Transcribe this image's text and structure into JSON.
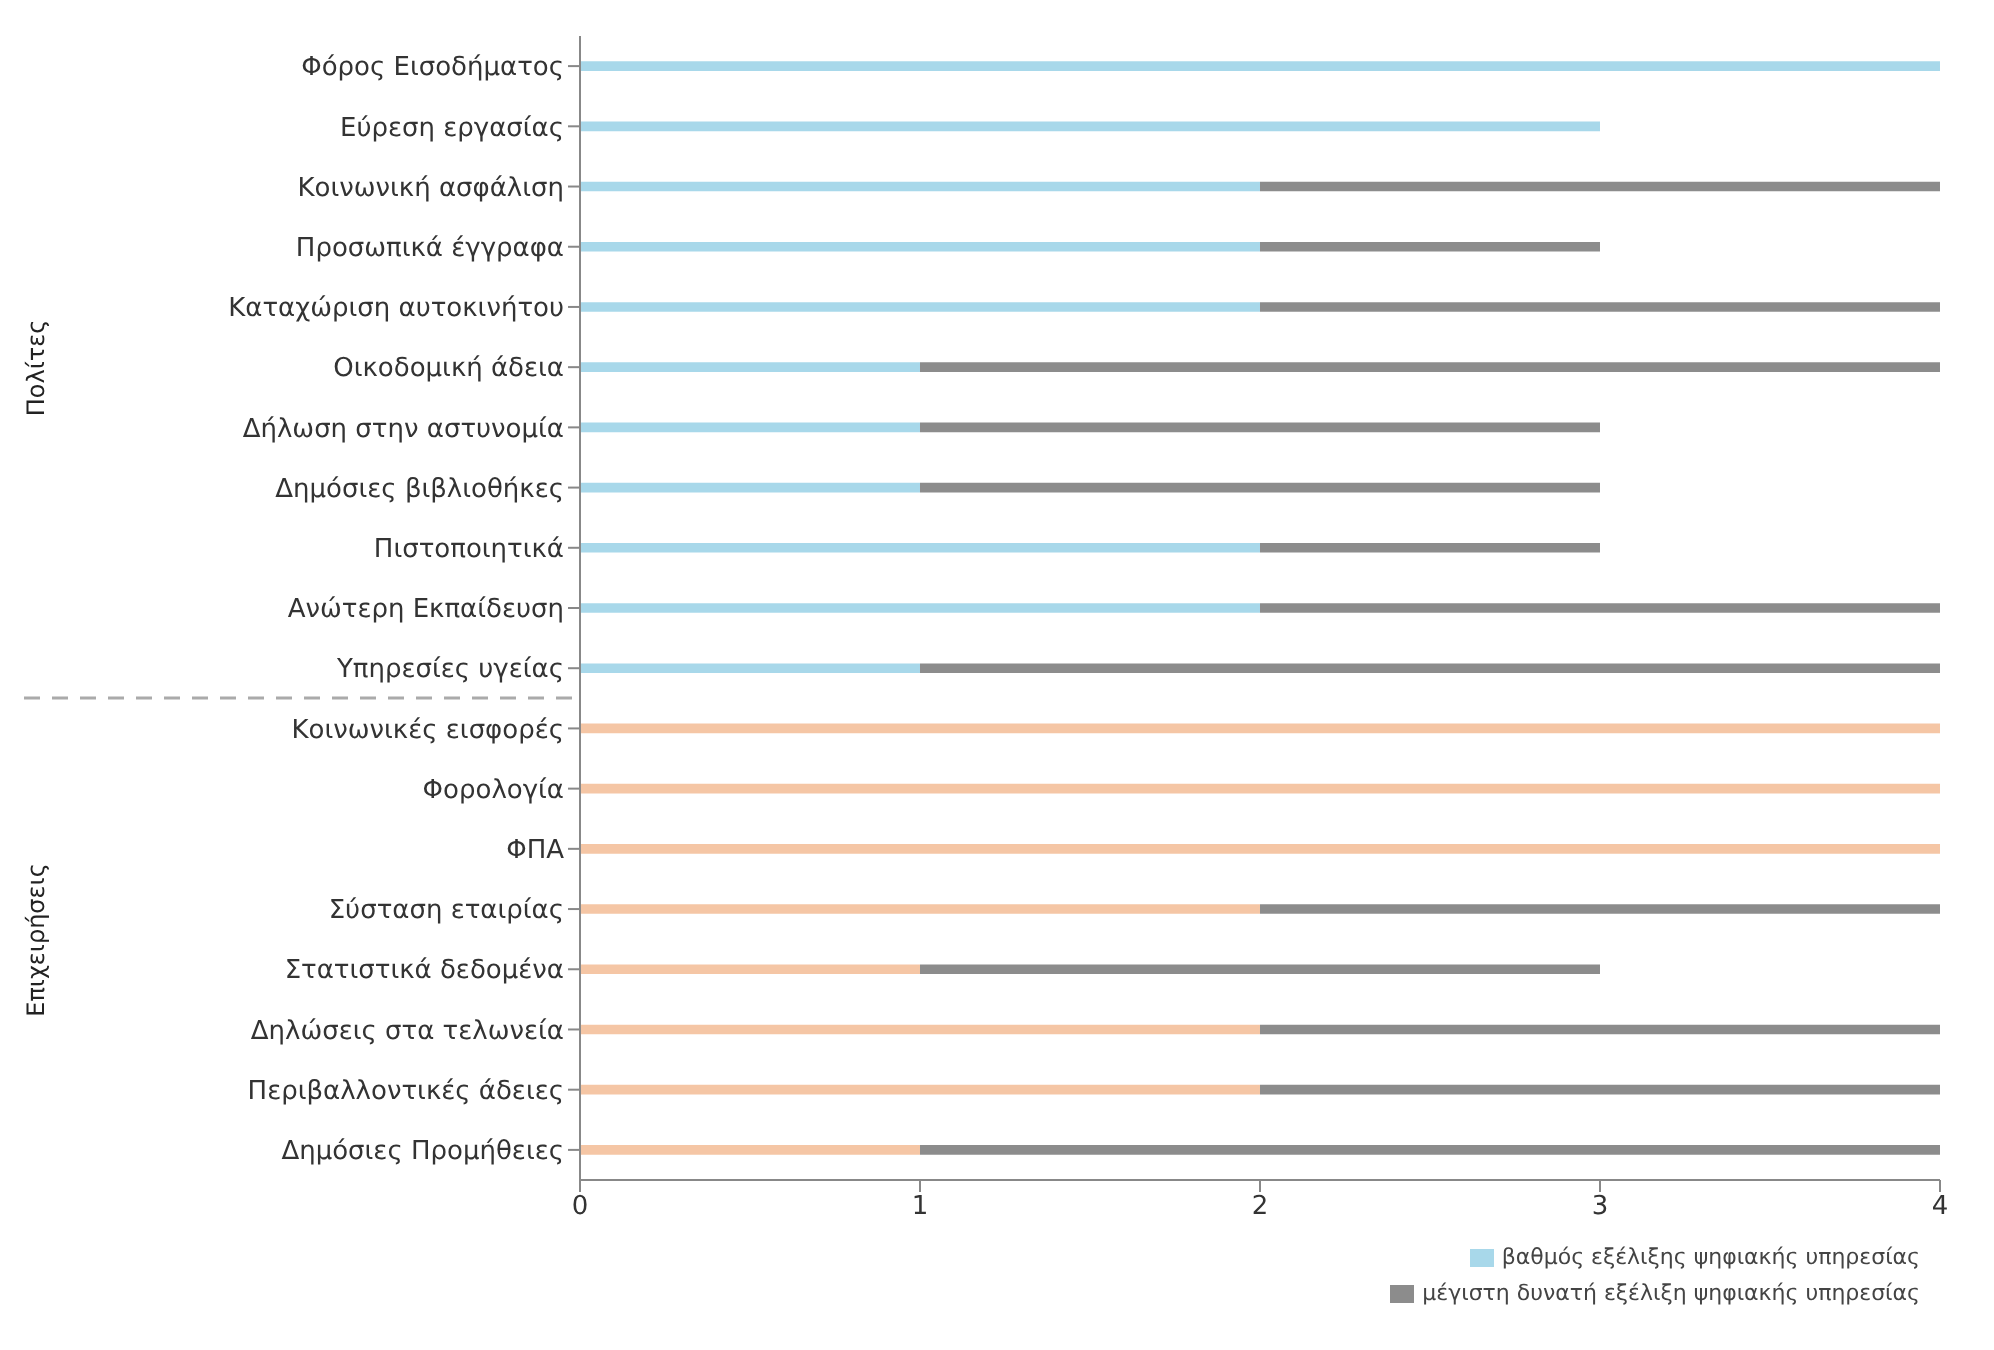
{
  "chart_data": {
    "type": "bar",
    "orientation": "horizontal",
    "stacked": true,
    "categories": [
      "Φόρος Εισοδήματος",
      "Εύρεση εργασίας",
      "Κοινωνική ασφάλιση",
      "Προσωπικά έγγραφα",
      "Καταχώριση αυτοκινήτου",
      "Οικοδομική άδεια",
      "Δήλωση στην αστυνομία",
      "Δημόσιες βιβλιοθήκες",
      "Πιστοποιητικά",
      "Ανώτερη Εκπαίδευση",
      "Υπηρεσίες υγείας",
      "Κοινωνικές εισφορές",
      "Φορολογία",
      "ΦΠΑ",
      "Σύσταση εταιρίας",
      "Στατιστικά δεδομένα",
      "Δηλώσεις στα τελωνεία",
      "Περιβαλλοντικές άδειες",
      "Δημόσιες Προμήθειες"
    ],
    "series": [
      {
        "name": "βαθμός εξέλιξης ψηφιακής υπηρεσίας",
        "color": "#a8d8ea",
        "colors": [
          "#a8d8ea",
          "#a8d8ea",
          "#a8d8ea",
          "#a8d8ea",
          "#a8d8ea",
          "#a8d8ea",
          "#a8d8ea",
          "#a8d8ea",
          "#a8d8ea",
          "#a8d8ea",
          "#a8d8ea",
          "#f5c6a5",
          "#f5c6a5",
          "#f5c6a5",
          "#f5c6a5",
          "#f5c6a5",
          "#f5c6a5",
          "#f5c6a5",
          "#f5c6a5"
        ],
        "values": [
          4,
          3,
          2,
          2,
          2,
          1,
          1,
          1,
          2,
          2,
          1,
          4,
          4,
          4,
          2,
          1,
          2,
          2,
          1
        ]
      },
      {
        "name": "μέγιστη δυνατή εξέλιξη ψηφιακής υπηρεσίας",
        "color": "#8c8c8c",
        "values": [
          0,
          0,
          2,
          1,
          2,
          3,
          2,
          2,
          1,
          2,
          3,
          0,
          0,
          0,
          2,
          2,
          2,
          2,
          3
        ]
      }
    ],
    "xlim": [
      0,
      4
    ],
    "xticks": [
      0,
      1,
      2,
      3,
      4
    ],
    "legend": "bottom right",
    "annotations": [
      "Πολίτες",
      "Επιχειρήσεις"
    ]
  }
}
